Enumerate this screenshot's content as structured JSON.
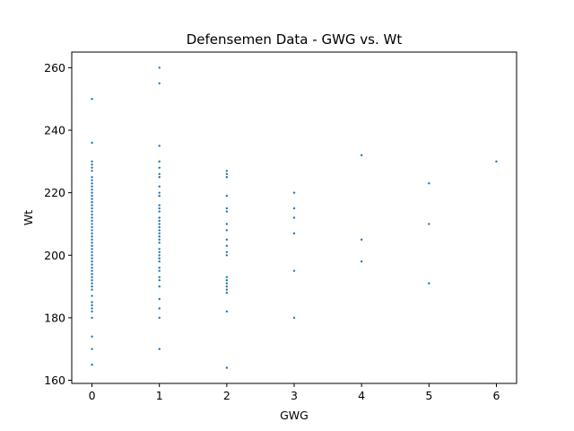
{
  "chart_data": {
    "type": "scatter",
    "title": "Defensemen Data - GWG vs. Wt",
    "xlabel": "GWG",
    "ylabel": "Wt",
    "xlim": [
      -0.3,
      6.3
    ],
    "ylim": [
      159,
      265
    ],
    "xticks": [
      0,
      1,
      2,
      3,
      4,
      5,
      6
    ],
    "yticks": [
      160,
      180,
      200,
      220,
      240,
      260
    ],
    "grid": false,
    "marker_color": "#1f77b4",
    "points": [
      {
        "x": 0,
        "y": 250
      },
      {
        "x": 0,
        "y": 236
      },
      {
        "x": 0,
        "y": 230
      },
      {
        "x": 0,
        "y": 229
      },
      {
        "x": 0,
        "y": 228
      },
      {
        "x": 0,
        "y": 227
      },
      {
        "x": 0,
        "y": 225
      },
      {
        "x": 0,
        "y": 224
      },
      {
        "x": 0,
        "y": 223
      },
      {
        "x": 0,
        "y": 222
      },
      {
        "x": 0,
        "y": 221
      },
      {
        "x": 0,
        "y": 220
      },
      {
        "x": 0,
        "y": 219
      },
      {
        "x": 0,
        "y": 218
      },
      {
        "x": 0,
        "y": 217
      },
      {
        "x": 0,
        "y": 216
      },
      {
        "x": 0,
        "y": 215
      },
      {
        "x": 0,
        "y": 214
      },
      {
        "x": 0,
        "y": 213
      },
      {
        "x": 0,
        "y": 212
      },
      {
        "x": 0,
        "y": 211
      },
      {
        "x": 0,
        "y": 210
      },
      {
        "x": 0,
        "y": 209
      },
      {
        "x": 0,
        "y": 208
      },
      {
        "x": 0,
        "y": 207
      },
      {
        "x": 0,
        "y": 206
      },
      {
        "x": 0,
        "y": 205
      },
      {
        "x": 0,
        "y": 204
      },
      {
        "x": 0,
        "y": 203
      },
      {
        "x": 0,
        "y": 202
      },
      {
        "x": 0,
        "y": 201
      },
      {
        "x": 0,
        "y": 200
      },
      {
        "x": 0,
        "y": 199
      },
      {
        "x": 0,
        "y": 198
      },
      {
        "x": 0,
        "y": 197
      },
      {
        "x": 0,
        "y": 196
      },
      {
        "x": 0,
        "y": 195
      },
      {
        "x": 0,
        "y": 194
      },
      {
        "x": 0,
        "y": 193
      },
      {
        "x": 0,
        "y": 192
      },
      {
        "x": 0,
        "y": 191
      },
      {
        "x": 0,
        "y": 190
      },
      {
        "x": 0,
        "y": 189
      },
      {
        "x": 0,
        "y": 187
      },
      {
        "x": 0,
        "y": 185
      },
      {
        "x": 0,
        "y": 184
      },
      {
        "x": 0,
        "y": 183
      },
      {
        "x": 0,
        "y": 182
      },
      {
        "x": 0,
        "y": 180
      },
      {
        "x": 0,
        "y": 174
      },
      {
        "x": 0,
        "y": 170
      },
      {
        "x": 0,
        "y": 165
      },
      {
        "x": 1,
        "y": 260
      },
      {
        "x": 1,
        "y": 255
      },
      {
        "x": 1,
        "y": 235
      },
      {
        "x": 1,
        "y": 230
      },
      {
        "x": 1,
        "y": 228
      },
      {
        "x": 1,
        "y": 226
      },
      {
        "x": 1,
        "y": 225
      },
      {
        "x": 1,
        "y": 222
      },
      {
        "x": 1,
        "y": 220
      },
      {
        "x": 1,
        "y": 219
      },
      {
        "x": 1,
        "y": 216
      },
      {
        "x": 1,
        "y": 215
      },
      {
        "x": 1,
        "y": 214
      },
      {
        "x": 1,
        "y": 212
      },
      {
        "x": 1,
        "y": 211
      },
      {
        "x": 1,
        "y": 210
      },
      {
        "x": 1,
        "y": 209
      },
      {
        "x": 1,
        "y": 208
      },
      {
        "x": 1,
        "y": 207
      },
      {
        "x": 1,
        "y": 206
      },
      {
        "x": 1,
        "y": 205
      },
      {
        "x": 1,
        "y": 204
      },
      {
        "x": 1,
        "y": 202
      },
      {
        "x": 1,
        "y": 201
      },
      {
        "x": 1,
        "y": 200
      },
      {
        "x": 1,
        "y": 199
      },
      {
        "x": 1,
        "y": 198
      },
      {
        "x": 1,
        "y": 196
      },
      {
        "x": 1,
        "y": 195
      },
      {
        "x": 1,
        "y": 193
      },
      {
        "x": 1,
        "y": 192
      },
      {
        "x": 1,
        "y": 190
      },
      {
        "x": 1,
        "y": 186
      },
      {
        "x": 1,
        "y": 183
      },
      {
        "x": 1,
        "y": 180
      },
      {
        "x": 1,
        "y": 170
      },
      {
        "x": 2,
        "y": 227
      },
      {
        "x": 2,
        "y": 226
      },
      {
        "x": 2,
        "y": 225
      },
      {
        "x": 2,
        "y": 219
      },
      {
        "x": 2,
        "y": 215
      },
      {
        "x": 2,
        "y": 214
      },
      {
        "x": 2,
        "y": 210
      },
      {
        "x": 2,
        "y": 208
      },
      {
        "x": 2,
        "y": 205
      },
      {
        "x": 2,
        "y": 203
      },
      {
        "x": 2,
        "y": 201
      },
      {
        "x": 2,
        "y": 200
      },
      {
        "x": 2,
        "y": 193
      },
      {
        "x": 2,
        "y": 192
      },
      {
        "x": 2,
        "y": 191
      },
      {
        "x": 2,
        "y": 190
      },
      {
        "x": 2,
        "y": 189
      },
      {
        "x": 2,
        "y": 188
      },
      {
        "x": 2,
        "y": 182
      },
      {
        "x": 2,
        "y": 164
      },
      {
        "x": 3,
        "y": 220
      },
      {
        "x": 3,
        "y": 215
      },
      {
        "x": 3,
        "y": 212
      },
      {
        "x": 3,
        "y": 207
      },
      {
        "x": 3,
        "y": 195
      },
      {
        "x": 3,
        "y": 180
      },
      {
        "x": 4,
        "y": 232
      },
      {
        "x": 4,
        "y": 205
      },
      {
        "x": 4,
        "y": 198
      },
      {
        "x": 5,
        "y": 223
      },
      {
        "x": 5,
        "y": 210
      },
      {
        "x": 5,
        "y": 191
      },
      {
        "x": 6,
        "y": 230
      }
    ]
  }
}
